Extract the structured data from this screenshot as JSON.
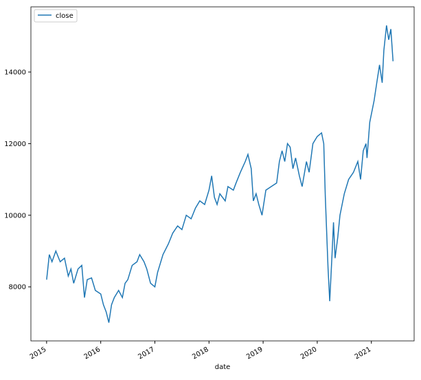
{
  "chart_data": {
    "type": "line",
    "xlabel": "date",
    "legend": "upper left",
    "x": [
      2015.0,
      2015.05,
      2015.1,
      2015.17,
      2015.25,
      2015.33,
      2015.4,
      2015.45,
      2015.5,
      2015.58,
      2015.65,
      2015.7,
      2015.75,
      2015.83,
      2015.9,
      2016.0,
      2016.05,
      2016.1,
      2016.15,
      2016.2,
      2016.25,
      2016.33,
      2016.4,
      2016.45,
      2016.5,
      2016.58,
      2016.67,
      2016.72,
      2016.8,
      2016.85,
      2016.92,
      2017.0,
      2017.05,
      2017.15,
      2017.25,
      2017.33,
      2017.42,
      2017.5,
      2017.58,
      2017.67,
      2017.75,
      2017.83,
      2017.92,
      2018.0,
      2018.05,
      2018.1,
      2018.15,
      2018.2,
      2018.3,
      2018.35,
      2018.45,
      2018.5,
      2018.58,
      2018.67,
      2018.72,
      2018.78,
      2018.82,
      2018.87,
      2018.92,
      2018.98,
      2019.05,
      2019.15,
      2019.25,
      2019.3,
      2019.35,
      2019.4,
      2019.45,
      2019.5,
      2019.55,
      2019.6,
      2019.67,
      2019.72,
      2019.8,
      2019.85,
      2019.92,
      2020.0,
      2020.08,
      2020.12,
      2020.15,
      2020.2,
      2020.23,
      2020.27,
      2020.3,
      2020.33,
      2020.38,
      2020.42,
      2020.5,
      2020.58,
      2020.67,
      2020.75,
      2020.8,
      2020.85,
      2020.9,
      2020.92,
      2020.97,
      2021.05,
      2021.1,
      2021.15,
      2021.2,
      2021.23,
      2021.28,
      2021.32,
      2021.36,
      2021.4
    ],
    "series": [
      {
        "name": "close",
        "color": "#1f77b4",
        "values": [
          8200,
          8900,
          8700,
          9000,
          8700,
          8800,
          8300,
          8500,
          8100,
          8500,
          8600,
          7700,
          8200,
          8250,
          7900,
          7800,
          7500,
          7300,
          7000,
          7500,
          7700,
          7900,
          7700,
          8100,
          8200,
          8600,
          8700,
          8900,
          8700,
          8500,
          8100,
          8000,
          8400,
          8900,
          9200,
          9500,
          9700,
          9600,
          10000,
          9900,
          10200,
          10400,
          10300,
          10700,
          11100,
          10500,
          10300,
          10600,
          10400,
          10800,
          10700,
          10900,
          11200,
          11500,
          11700,
          11300,
          10400,
          10600,
          10300,
          10000,
          10700,
          10800,
          10900,
          11500,
          11800,
          11500,
          12000,
          11900,
          11300,
          11600,
          11100,
          10800,
          11500,
          11200,
          12000,
          12200,
          12300,
          12000,
          10500,
          8500,
          7600,
          8800,
          9800,
          8800,
          9400,
          10000,
          10600,
          11000,
          11200,
          11500,
          11000,
          11800,
          12000,
          11600,
          12600,
          13200,
          13700,
          14200,
          13700,
          14600,
          15300,
          14900,
          15200,
          14300
        ]
      }
    ],
    "xlim": [
      2014.71,
      2021.79
    ],
    "xticks": [
      2015,
      2016,
      2017,
      2018,
      2019,
      2020,
      2021
    ],
    "ylim": [
      6490,
      15820
    ],
    "yticks": [
      8000,
      10000,
      12000,
      14000
    ]
  }
}
